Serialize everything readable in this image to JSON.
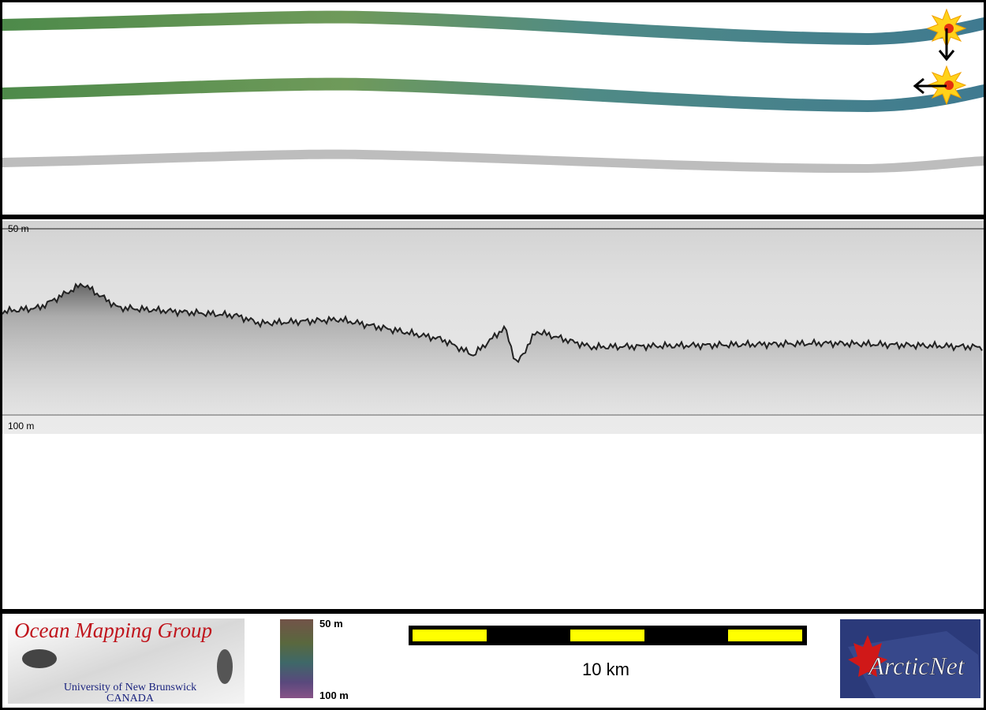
{
  "echogram": {
    "top_label": "50 m",
    "bottom_label": "100 m"
  },
  "legend": {
    "colorbar_top": "50 m",
    "colorbar_bottom": "100 m",
    "scale": "10 km"
  },
  "logos": {
    "omg_title": "Ocean Mapping Group",
    "omg_university": "University of New Brunswick",
    "omg_country": "CANADA",
    "arcticnet": "ArcticNet"
  }
}
